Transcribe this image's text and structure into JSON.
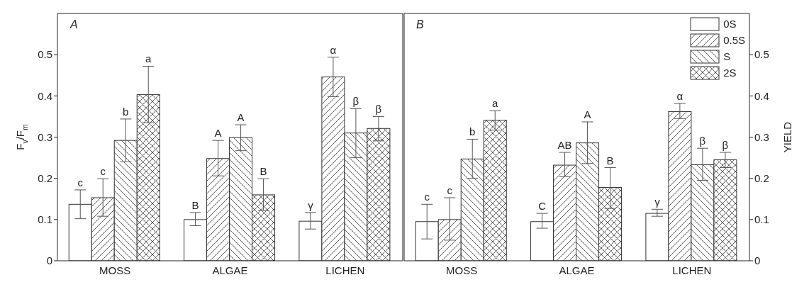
{
  "chart_data": [
    {
      "type": "bar",
      "categories": [
        "MOSS",
        "ALGAE",
        "LICHEN"
      ],
      "ylabel": "F$_{v}$/F$_{m}$",
      "ylim": [
        0,
        0.6
      ],
      "yticks": [
        0,
        0.1,
        0.2,
        0.3,
        0.4,
        0.5
      ],
      "annotations": [
        "A"
      ],
      "legend": false,
      "grid": false,
      "series": [
        {
          "color": "#ffffff",
          "values": [
            0.137,
            0.1,
            0.096
          ],
          "errors": [
            [
              0.102,
              0.172
            ],
            [
              0.085,
              0.117
            ],
            [
              0.077,
              0.117
            ]
          ],
          "value_labels": [
            "c",
            "B",
            "γ"
          ]
        },
        {
          "color": "#ffffff",
          "values": [
            0.153,
            0.248,
            0.446
          ],
          "errors": [
            [
              0.108,
              0.199
            ],
            [
              0.206,
              0.292
            ],
            [
              0.398,
              0.494
            ]
          ],
          "value_labels": [
            "c",
            "A",
            "α"
          ]
        },
        {
          "color": "#ffffff",
          "values": [
            0.292,
            0.299,
            0.31
          ],
          "errors": [
            [
              0.24,
              0.344
            ],
            [
              0.267,
              0.33
            ],
            [
              0.25,
              0.369
            ]
          ],
          "value_labels": [
            "b",
            "A",
            "β"
          ]
        },
        {
          "color": "#ffffff",
          "values": [
            0.403,
            0.16,
            0.321
          ],
          "errors": [
            [
              0.335,
              0.472
            ],
            [
              0.122,
              0.199
            ],
            [
              0.291,
              0.35
            ]
          ],
          "value_labels": [
            "a",
            "B",
            "β"
          ]
        }
      ]
    },
    {
      "type": "bar",
      "categories": [
        "MOSS",
        "ALGAE",
        "LICHEN"
      ],
      "y2label": "YIELD",
      "y2lim": [
        0,
        0.6
      ],
      "y2ticks": [
        0,
        0.1,
        0.2,
        0.3,
        0.4,
        0.5
      ],
      "annotations": [
        "B"
      ],
      "legend": "top right",
      "grid": false,
      "series": [
        {
          "name": "0S",
          "color": "#ffffff",
          "axis": "y2",
          "values": [
            0.095,
            0.095,
            0.115
          ],
          "errors": [
            [
              0.053,
              0.137
            ],
            [
              0.079,
              0.115
            ],
            [
              0.108,
              0.125
            ]
          ],
          "value_labels": [
            "c",
            "C",
            "γ"
          ]
        },
        {
          "name": "0.5S",
          "color": "#ffffff",
          "axis": "y2",
          "values": [
            0.1,
            0.232,
            0.362
          ],
          "errors": [
            [
              0.05,
              0.153
            ],
            [
              0.204,
              0.263
            ],
            [
              0.345,
              0.382
            ]
          ],
          "value_labels": [
            "c",
            "AB",
            "α"
          ]
        },
        {
          "name": "S",
          "color": "#ffffff",
          "axis": "y2",
          "values": [
            0.247,
            0.286,
            0.233
          ],
          "errors": [
            [
              0.2,
              0.295
            ],
            [
              0.236,
              0.337
            ],
            [
              0.195,
              0.273
            ]
          ],
          "value_labels": [
            "b",
            "A",
            "β"
          ]
        },
        {
          "name": "2S",
          "color": "#ffffff",
          "axis": "y2",
          "values": [
            0.341,
            0.178,
            0.245
          ],
          "errors": [
            [
              0.317,
              0.364
            ],
            [
              0.127,
              0.226
            ],
            [
              0.226,
              0.263
            ]
          ],
          "value_labels": [
            "a",
            "B",
            "β"
          ]
        }
      ]
    }
  ]
}
